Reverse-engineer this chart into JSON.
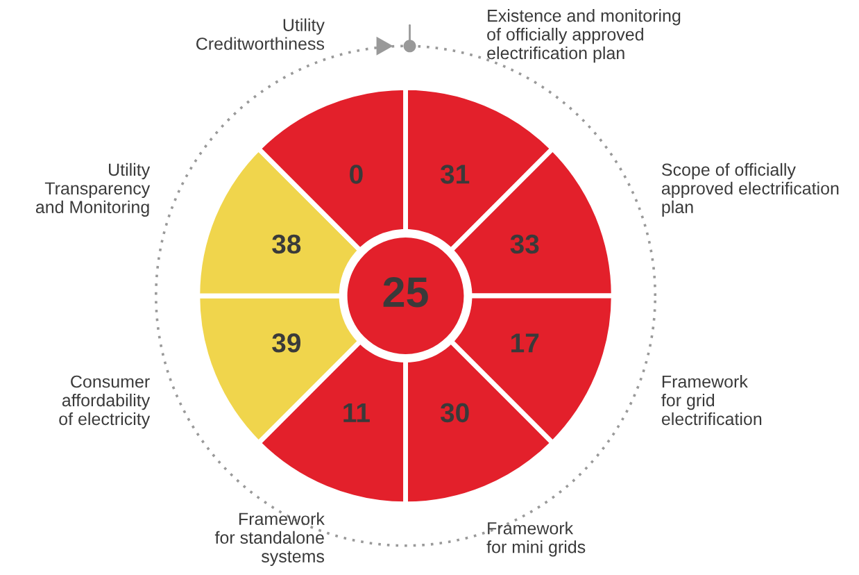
{
  "chart_data": {
    "type": "other",
    "categories": [
      "Existence and monitoring\nof officially approved\nelectrification plan",
      "Scope of officially\napproved electrification\nplan",
      "Framework\nfor grid\nelectrification",
      "Framework\nfor mini grids",
      "Framework\nfor standalone\nsystems",
      "Consumer\naffordability\nof electricity",
      "Utility\nTransparency\nand Monitoring",
      "Utility\nCreditworthiness"
    ],
    "values": [
      31,
      33,
      17,
      30,
      11,
      39,
      38,
      0
    ],
    "colors": [
      "#e3202b",
      "#e3202b",
      "#e3202b",
      "#e3202b",
      "#e3202b",
      "#f0d54c",
      "#f0d54c",
      "#e3202b"
    ],
    "data_labels": true,
    "annotations": [
      "25"
    ]
  }
}
